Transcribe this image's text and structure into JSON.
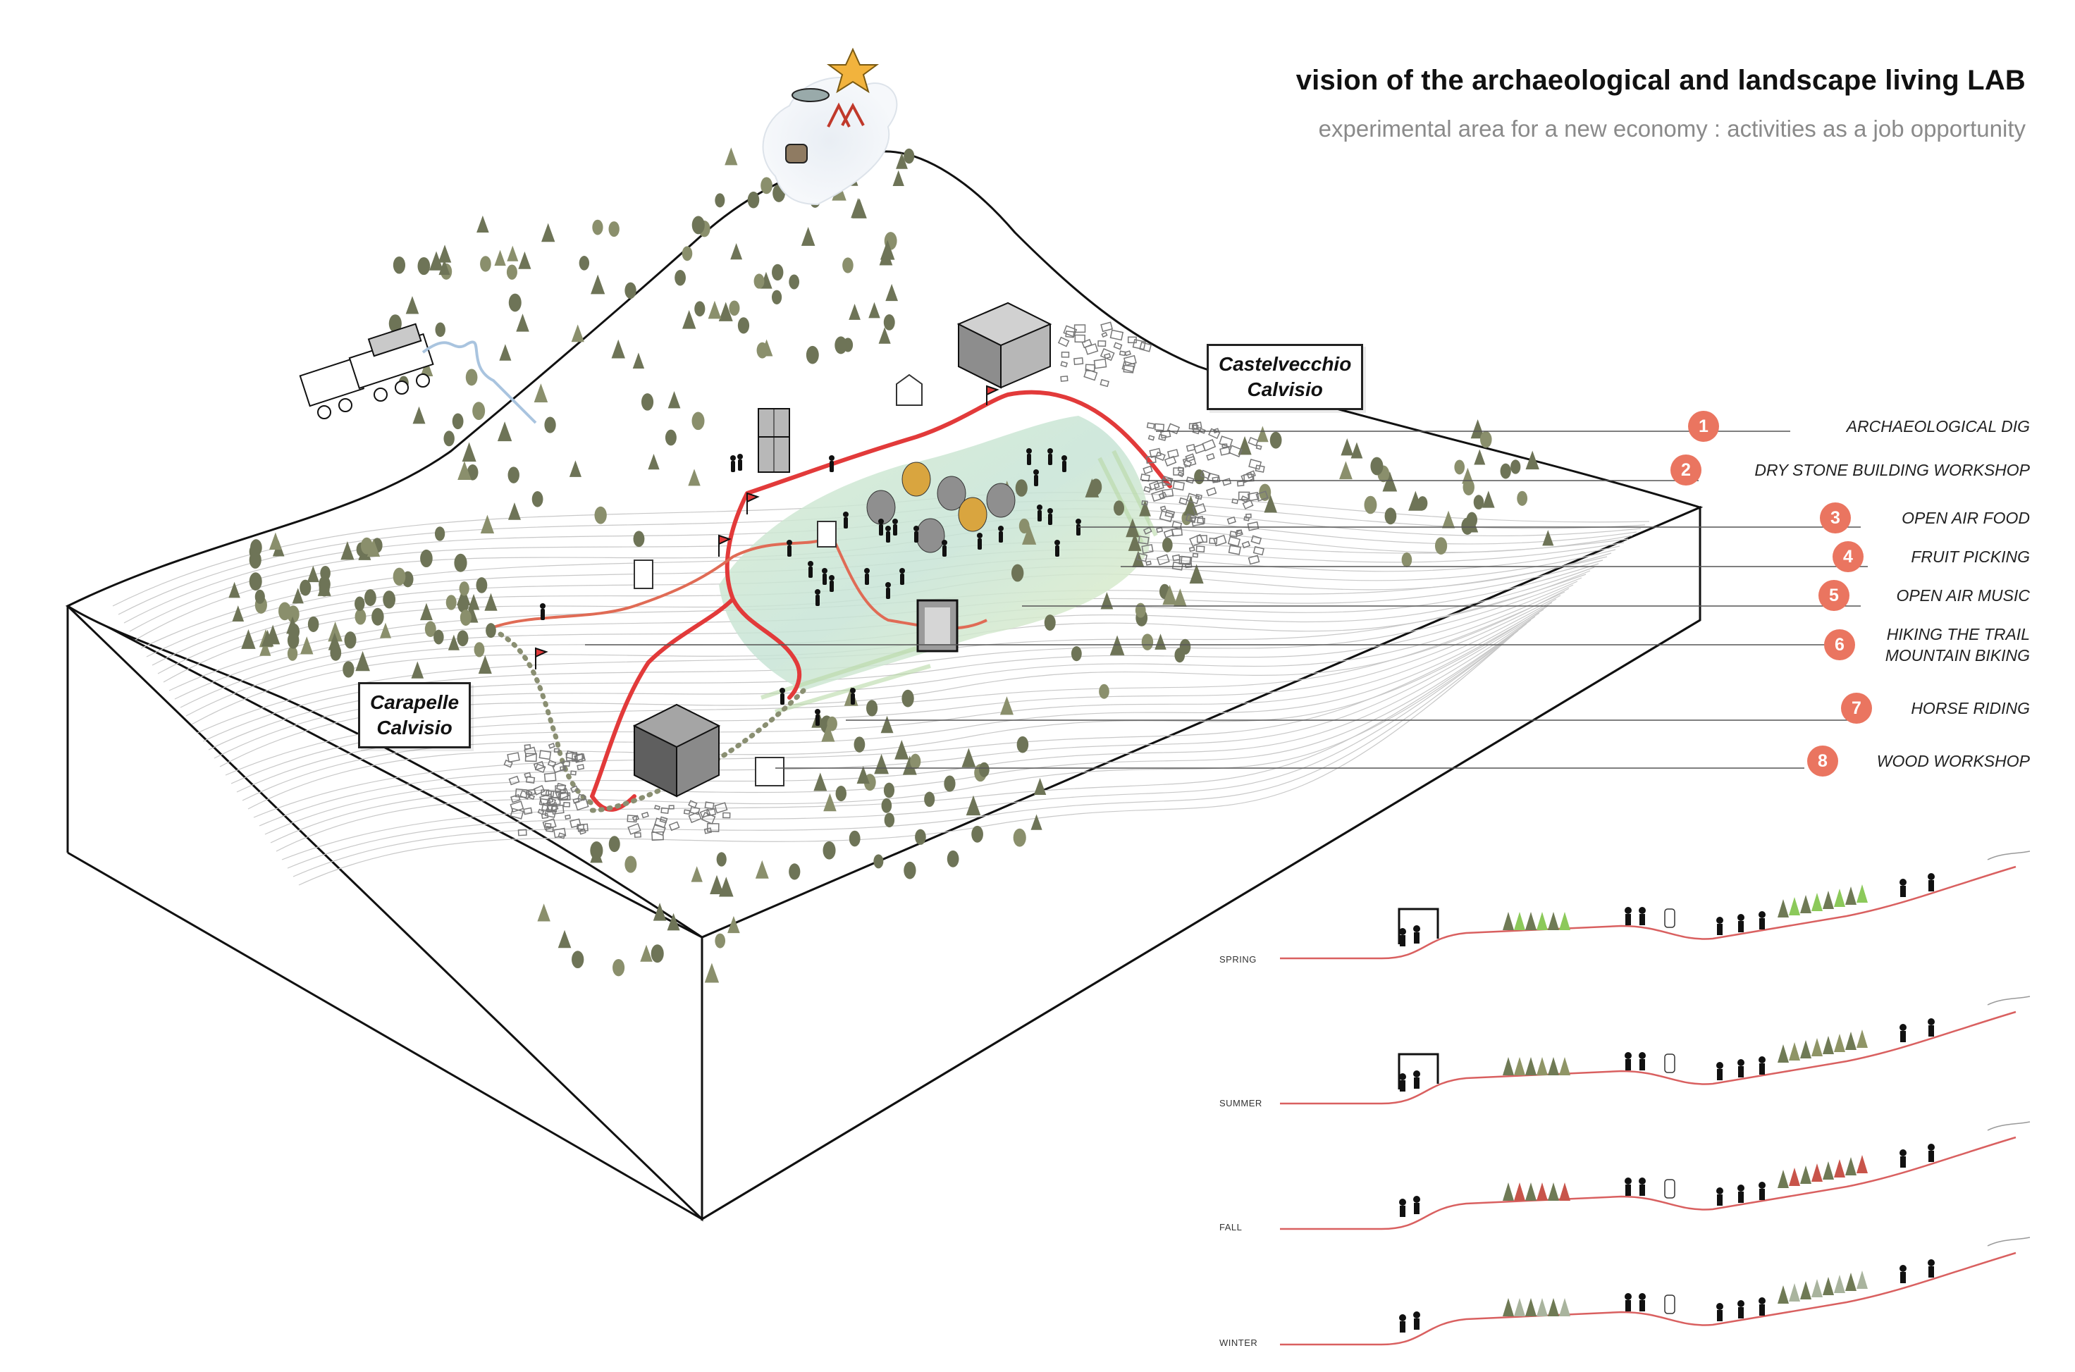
{
  "header": {
    "title": "vision of the archaeological and landscape living LAB",
    "subtitle": "experimental area for a new economy : activities as a job opportunity"
  },
  "places": {
    "castelvecchio": [
      "Castelvecchio",
      "Calvisio"
    ],
    "carapelle": [
      "Carapelle",
      "Calvisio"
    ]
  },
  "activities": [
    {
      "num": "1",
      "label": [
        "ARCHAEOLOGICAL DIG"
      ]
    },
    {
      "num": "2",
      "label": [
        "DRY STONE BUILDING WORKSHOP"
      ]
    },
    {
      "num": "3",
      "label": [
        "OPEN AIR FOOD"
      ]
    },
    {
      "num": "4",
      "label": [
        "FRUIT PICKING"
      ]
    },
    {
      "num": "5",
      "label": [
        "OPEN AIR MUSIC"
      ]
    },
    {
      "num": "6",
      "label": [
        "HIKING THE TRAIL",
        "MOUNTAIN BIKING"
      ]
    },
    {
      "num": "7",
      "label": [
        "HORSE RIDING"
      ]
    },
    {
      "num": "8",
      "label": [
        "WOOD WORKSHOP"
      ]
    }
  ],
  "seasons": [
    "SPRING",
    "SUMMER",
    "FALL",
    "WINTER"
  ],
  "colors": {
    "accent_red": "#e23a3a",
    "badge": "#ea7560",
    "trail": "#e06b55",
    "tree_dark": "#6e7457",
    "tree_green": "#8cb96a",
    "meadow": "#cfe8c9",
    "subtitle_gray": "#8a8a8a",
    "outline": "#111111"
  }
}
